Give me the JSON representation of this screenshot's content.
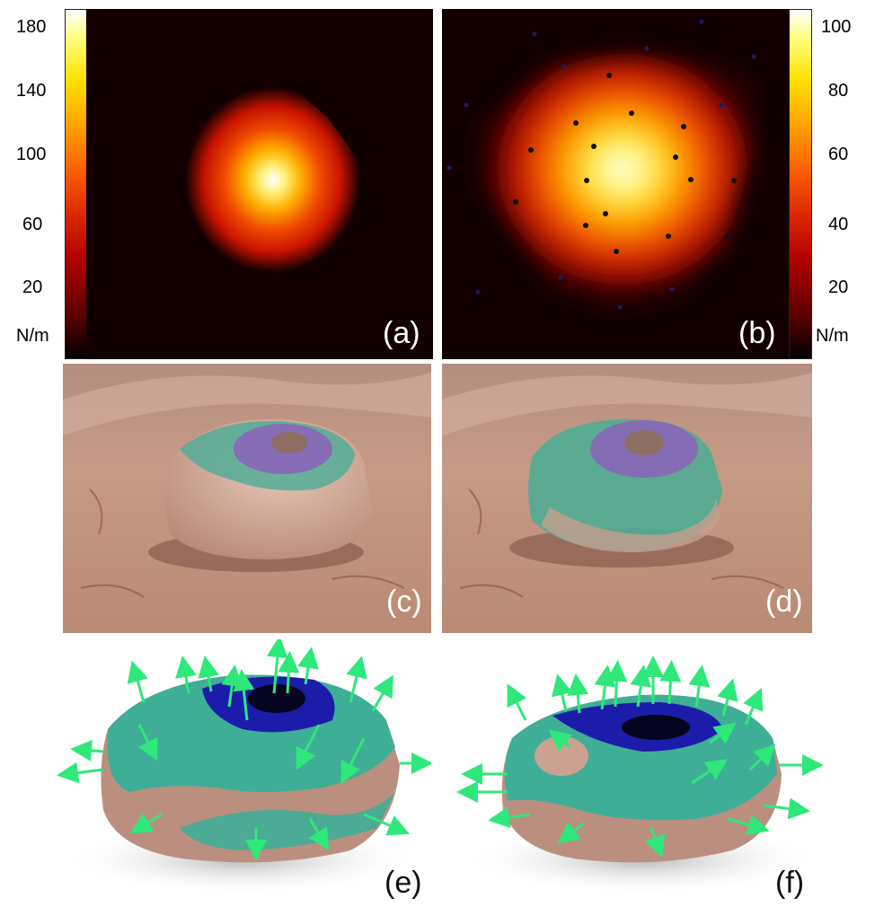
{
  "colorbar_left": {
    "ticks": [
      "180",
      "140",
      "100",
      "60",
      "20"
    ],
    "unit": "N/m"
  },
  "colorbar_right": {
    "ticks": [
      "100",
      "80",
      "60",
      "40",
      "20"
    ],
    "unit": "N/m"
  },
  "panels": {
    "a": "(a)",
    "b": "(b)",
    "c": "(c)",
    "d": "(d)",
    "e": "(e)",
    "f": "(f)"
  },
  "colors": {
    "heat_low": "#1a0000",
    "heat_high": "#ffffff",
    "skin": "#c9a08c",
    "overlay_teal": "#3fae96",
    "overlay_purple": "#7f5fb8",
    "overlay_blue": "#1c1caa",
    "arrow_green": "#2ee87a"
  }
}
